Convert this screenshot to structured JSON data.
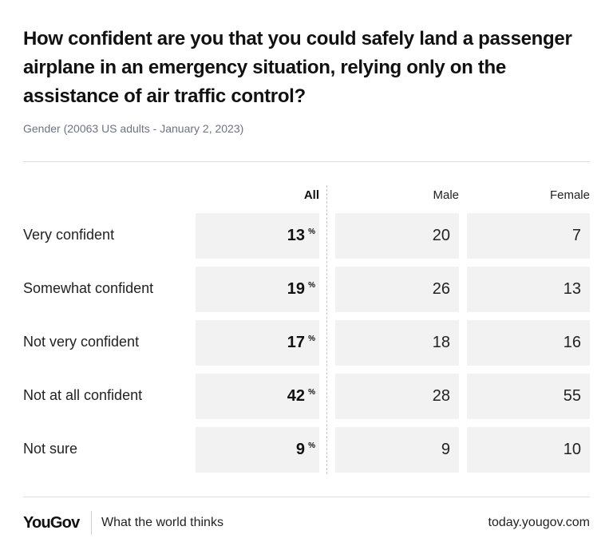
{
  "header": {
    "title": "How confident are you that you could safely land a passenger airplane in an emergency situation, relying only on the assistance of air traffic control?",
    "subtitle": "Gender (20063 US adults - January 2, 2023)"
  },
  "chart_data": {
    "type": "table",
    "columns": [
      "All",
      "Male",
      "Female"
    ],
    "unit": "%",
    "rows": [
      {
        "label": "Very confident",
        "values": [
          13,
          20,
          7
        ]
      },
      {
        "label": "Somewhat confident",
        "values": [
          19,
          26,
          13
        ]
      },
      {
        "label": "Not very confident",
        "values": [
          17,
          18,
          16
        ]
      },
      {
        "label": "Not at all confident",
        "values": [
          42,
          28,
          55
        ]
      },
      {
        "label": "Not sure",
        "values": [
          9,
          9,
          10
        ]
      }
    ]
  },
  "footer": {
    "brand": "YouGov",
    "tagline": "What the world thinks",
    "url": "today.yougov.com"
  }
}
